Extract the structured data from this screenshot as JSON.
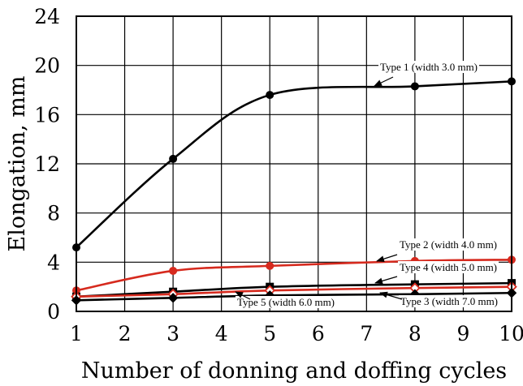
{
  "chart_data": {
    "type": "line",
    "xlabel": "Number of donning and doffing cycles",
    "ylabel": "Elongation, mm",
    "xlim": [
      1,
      10
    ],
    "ylim": [
      0,
      24
    ],
    "xticks": [
      "1",
      "2",
      "3",
      "4",
      "5",
      "6",
      "7",
      "8",
      "9",
      "10"
    ],
    "yticks": [
      "0",
      "4",
      "8",
      "12",
      "16",
      "20",
      "24"
    ],
    "grid": true,
    "series": [
      {
        "name": "Type 1 (width 3.0 mm)",
        "color": "#000000",
        "marker": "circle-filled",
        "x": [
          1,
          3,
          5,
          8,
          10
        ],
        "y": [
          5.2,
          12.4,
          17.6,
          18.3,
          18.7
        ]
      },
      {
        "name": "Type 2 (width 4.0 mm)",
        "color": "#d62a1e",
        "marker": "circle-filled",
        "x": [
          1,
          3,
          5,
          8,
          10
        ],
        "y": [
          1.7,
          3.3,
          3.7,
          4.1,
          4.2
        ]
      },
      {
        "name": "Type 4 (width 5.0 mm)",
        "color": "#000000",
        "marker": "square-filled",
        "x": [
          1,
          3,
          5,
          8,
          10
        ],
        "y": [
          1.2,
          1.6,
          2.0,
          2.2,
          2.3
        ]
      },
      {
        "name": "Type 3 (width 7.0 mm)",
        "color": "#d62a1e",
        "marker": "diamond-open",
        "x": [
          1,
          3,
          5,
          8,
          10
        ],
        "y": [
          1.2,
          1.4,
          1.7,
          1.9,
          2.0
        ]
      },
      {
        "name": "Type 5 (width 6.0 mm)",
        "color": "#000000",
        "marker": "diamond-filled",
        "x": [
          1,
          3,
          5,
          8,
          10
        ],
        "y": [
          0.9,
          1.1,
          1.3,
          1.4,
          1.5
        ]
      }
    ]
  }
}
